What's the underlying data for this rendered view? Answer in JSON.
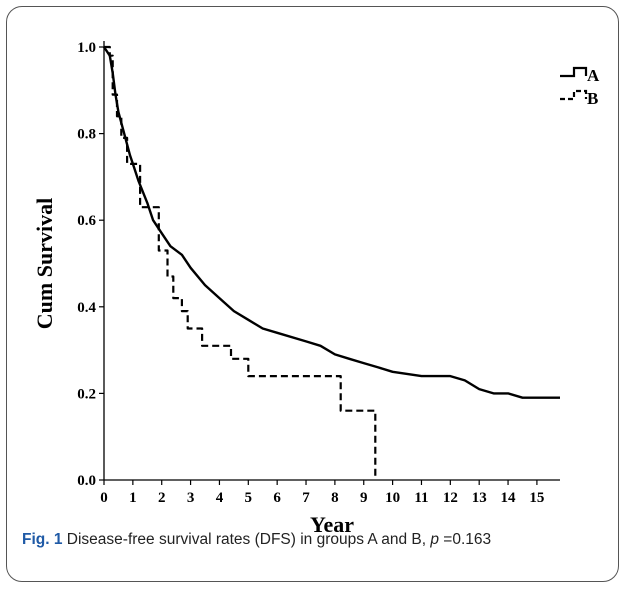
{
  "chart_data": {
    "type": "line",
    "xlabel": "Year",
    "ylabel": "Cum Survival",
    "xlim": [
      0,
      15.8
    ],
    "ylim": [
      0,
      1.0
    ],
    "x_ticks": [
      0,
      1,
      2,
      3,
      4,
      5,
      6,
      7,
      8,
      9,
      10,
      11,
      12,
      13,
      14,
      15
    ],
    "y_ticks": [
      0.0,
      0.2,
      0.4,
      0.6,
      0.8,
      1.0
    ],
    "grid": false,
    "legend_position": "top-right",
    "series": [
      {
        "name": "A",
        "style": "solid",
        "color": "#000000",
        "points": [
          [
            0,
            1.0
          ],
          [
            0.2,
            0.98
          ],
          [
            0.3,
            0.94
          ],
          [
            0.4,
            0.89
          ],
          [
            0.5,
            0.85
          ],
          [
            0.7,
            0.8
          ],
          [
            0.9,
            0.75
          ],
          [
            1.0,
            0.73
          ],
          [
            1.2,
            0.69
          ],
          [
            1.5,
            0.64
          ],
          [
            1.7,
            0.6
          ],
          [
            2.0,
            0.57
          ],
          [
            2.3,
            0.54
          ],
          [
            2.7,
            0.52
          ],
          [
            3.0,
            0.49
          ],
          [
            3.5,
            0.45
          ],
          [
            4.0,
            0.42
          ],
          [
            4.5,
            0.39
          ],
          [
            5.0,
            0.37
          ],
          [
            5.5,
            0.35
          ],
          [
            6.0,
            0.34
          ],
          [
            7.0,
            0.32
          ],
          [
            7.5,
            0.31
          ],
          [
            8.0,
            0.29
          ],
          [
            8.5,
            0.28
          ],
          [
            9.0,
            0.27
          ],
          [
            9.5,
            0.26
          ],
          [
            10.0,
            0.25
          ],
          [
            11.0,
            0.24
          ],
          [
            12.0,
            0.24
          ],
          [
            12.5,
            0.23
          ],
          [
            13.0,
            0.21
          ],
          [
            13.5,
            0.2
          ],
          [
            14.0,
            0.2
          ],
          [
            14.5,
            0.19
          ],
          [
            15.0,
            0.19
          ],
          [
            15.8,
            0.19
          ]
        ]
      },
      {
        "name": "B",
        "style": "dashed",
        "color": "#000000",
        "steps": [
          [
            0,
            1.0
          ],
          [
            0.2,
            0.98
          ],
          [
            0.3,
            0.89
          ],
          [
            0.45,
            0.84
          ],
          [
            0.6,
            0.79
          ],
          [
            0.8,
            0.73
          ],
          [
            1.25,
            0.63
          ],
          [
            1.9,
            0.53
          ],
          [
            2.2,
            0.47
          ],
          [
            2.4,
            0.42
          ],
          [
            2.7,
            0.39
          ],
          [
            2.9,
            0.35
          ],
          [
            3.4,
            0.31
          ],
          [
            4.4,
            0.28
          ],
          [
            5.0,
            0.24
          ],
          [
            8.2,
            0.16
          ],
          [
            9.4,
            0.0
          ]
        ]
      }
    ]
  },
  "caption": {
    "figure_label": "Fig. 1",
    "text": "Disease-free survival rates (DFS) in groups A and B,",
    "p_symbol": "p",
    "p_value": "=0.163"
  }
}
